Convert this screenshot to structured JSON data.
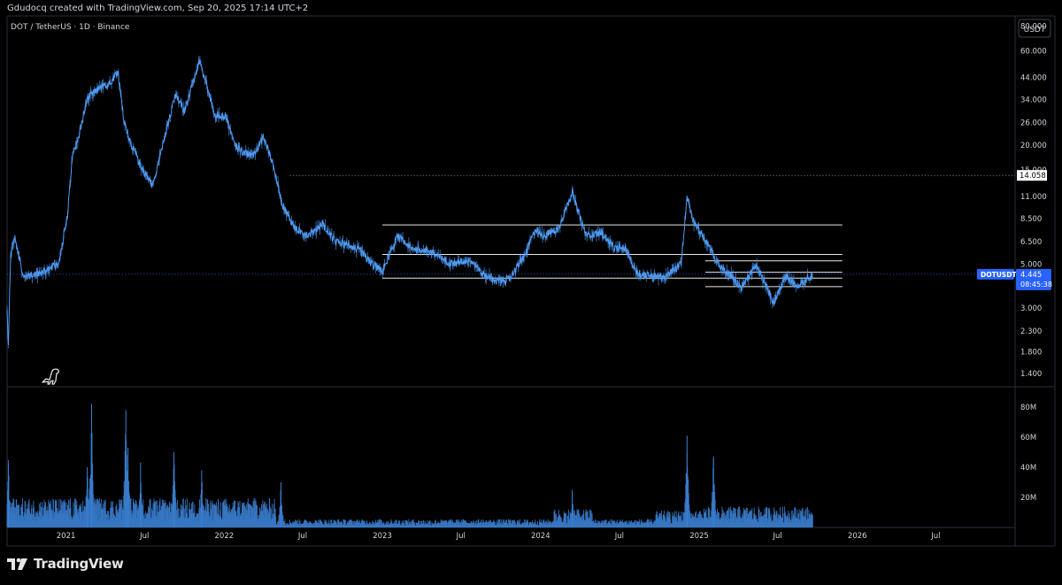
{
  "header": {
    "created_by": "Gdudocq created with TradingView.com, Sep 20, 2025 17:14 UTC+2",
    "symbol_line": "DOT / TetherUS · 1D · Binance"
  },
  "branding": {
    "logo_text": "TradingView"
  },
  "colors": {
    "price": "#4d9bf5",
    "volume": "#3b82d6",
    "background": "#000000",
    "axis_text": "#d1d4dc",
    "badge": "#2962ff"
  },
  "chart_data": [
    {
      "type": "line",
      "name": "price",
      "currency_label": "USDT",
      "scale": "log",
      "ylim": [
        1.2,
        90
      ],
      "y_ticks": [
        "80.000",
        "60.000",
        "44.000",
        "34.000",
        "26.000",
        "20.000",
        "15.000",
        "11.000",
        "8.500",
        "6.500",
        "5.000",
        "3.000",
        "2.300",
        "1.800",
        "1.400"
      ],
      "x_ticks": [
        "2021",
        "Jul",
        "2022",
        "Jul",
        "2023",
        "Jul",
        "2024",
        "Jul",
        "2025",
        "Jul",
        "2026",
        "Jul"
      ],
      "x_tick_dates": [
        "2021-01-01",
        "2021-07-01",
        "2022-01-01",
        "2022-07-01",
        "2023-01-01",
        "2023-07-01",
        "2024-01-01",
        "2024-07-01",
        "2025-01-01",
        "2025-07-01",
        "2026-01-01",
        "2026-07-01"
      ],
      "x_range": [
        "2020-08-18",
        "2026-12-31"
      ],
      "series": [
        {
          "x": [
            "2020-08-18",
            "2020-08-21",
            "2020-08-26",
            "2020-09-05",
            "2020-09-25",
            "2020-11-01",
            "2020-12-15",
            "2021-01-05",
            "2021-01-15",
            "2021-02-01",
            "2021-02-20",
            "2021-03-15",
            "2021-04-10",
            "2021-05-01",
            "2021-05-15",
            "2021-05-25",
            "2021-06-20",
            "2021-07-20",
            "2021-08-15",
            "2021-09-10",
            "2021-10-01",
            "2021-10-25",
            "2021-11-04",
            "2021-11-25",
            "2021-12-10",
            "2022-01-05",
            "2022-01-25",
            "2022-02-20",
            "2022-03-10",
            "2022-04-01",
            "2022-04-20",
            "2022-05-05",
            "2022-05-15",
            "2022-06-15",
            "2022-07-15",
            "2022-08-15",
            "2022-09-15",
            "2022-10-20",
            "2022-11-10",
            "2022-12-01",
            "2022-12-31",
            "2023-02-05",
            "2023-03-10",
            "2023-04-15",
            "2023-05-20",
            "2023-06-15",
            "2023-07-20",
            "2023-08-20",
            "2023-09-20",
            "2023-10-20",
            "2023-11-25",
            "2023-12-20",
            "2024-01-10",
            "2024-02-10",
            "2024-03-14",
            "2024-04-15",
            "2024-05-20",
            "2024-06-20",
            "2024-07-15",
            "2024-08-10",
            "2024-09-10",
            "2024-10-15",
            "2024-11-20",
            "2024-12-04",
            "2024-12-20",
            "2025-01-20",
            "2025-02-20",
            "2025-03-20",
            "2025-04-08",
            "2025-05-12",
            "2025-06-22",
            "2025-07-20",
            "2025-08-15",
            "2025-09-20"
          ],
          "y": [
            2.9,
            1.9,
            5.5,
            6.8,
            4.3,
            4.5,
            5.0,
            9.0,
            17.0,
            23.0,
            35.0,
            38.0,
            41.0,
            47.0,
            26.0,
            22.0,
            16.0,
            12.5,
            21.0,
            36.0,
            30.0,
            44.0,
            53.0,
            38.0,
            28.0,
            28.0,
            20.0,
            18.0,
            18.0,
            22.0,
            17.0,
            12.5,
            10.0,
            7.5,
            7.0,
            8.0,
            6.5,
            6.2,
            5.8,
            5.2,
            4.6,
            6.9,
            6.0,
            5.9,
            5.3,
            5.0,
            5.3,
            4.5,
            4.1,
            4.2,
            5.5,
            7.5,
            7.0,
            7.5,
            11.5,
            7.0,
            7.2,
            6.0,
            6.0,
            4.5,
            4.4,
            4.3,
            5.0,
            11.0,
            8.2,
            6.3,
            4.8,
            4.3,
            3.8,
            5.0,
            3.2,
            4.3,
            3.9,
            4.445
          ]
        }
      ],
      "horizontal_levels": [
        {
          "value": 14.058,
          "label": "14.058",
          "style": "dotted"
        },
        {
          "value": 7.9,
          "start": "2023-01-01",
          "end": "2026-01-01"
        },
        {
          "value": 5.6,
          "start": "2023-01-01",
          "end": "2026-01-01"
        },
        {
          "value": 5.2,
          "start": "2025-01-15",
          "end": "2026-01-01"
        },
        {
          "value": 4.55,
          "start": "2025-01-15",
          "end": "2026-01-01"
        },
        {
          "value": 4.25,
          "start": "2023-01-01",
          "end": "2026-01-01"
        },
        {
          "value": 3.85,
          "start": "2025-01-15",
          "end": "2026-01-01"
        }
      ],
      "last_price": {
        "symbol": "DOTUSDT",
        "value": "4.445",
        "countdown": "08:45:38",
        "price": 4.445
      }
    },
    {
      "type": "bar",
      "name": "volume",
      "y_ticks": [
        "80M",
        "60M",
        "40M",
        "20M"
      ],
      "ylim": [
        0,
        90000000
      ],
      "spikes": [
        {
          "date": "2020-08-21",
          "value": 42000000
        },
        {
          "date": "2021-02-19",
          "value": 40000000
        },
        {
          "date": "2021-03-01",
          "value": 82000000
        },
        {
          "date": "2021-05-19",
          "value": 78000000
        },
        {
          "date": "2021-05-24",
          "value": 53000000
        },
        {
          "date": "2021-06-22",
          "value": 43000000
        },
        {
          "date": "2021-09-07",
          "value": 50000000
        },
        {
          "date": "2021-11-10",
          "value": 38000000
        },
        {
          "date": "2022-05-12",
          "value": 30000000
        },
        {
          "date": "2024-03-14",
          "value": 25000000
        },
        {
          "date": "2024-12-04",
          "value": 61000000
        },
        {
          "date": "2025-02-03",
          "value": 46000000
        }
      ]
    }
  ]
}
